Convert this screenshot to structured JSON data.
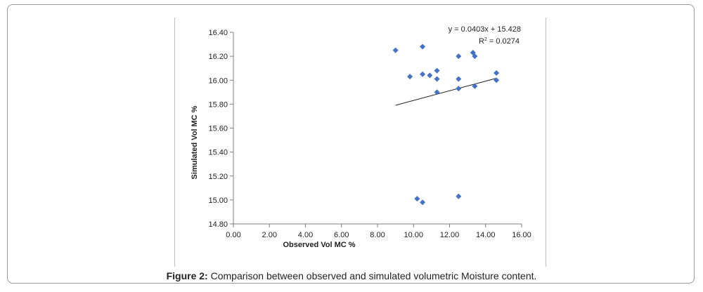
{
  "chart_data": {
    "type": "scatter",
    "xlabel": "Observed Vol MC %",
    "ylabel": "Simulated Vol MC %",
    "xlim": [
      0,
      16
    ],
    "ylim": [
      14.8,
      16.4
    ],
    "x_ticks": [
      "0.00",
      "2.00",
      "4.00",
      "6.00",
      "8.00",
      "10.00",
      "12.00",
      "14.00",
      "16.00"
    ],
    "y_ticks": [
      "14.80",
      "15.00",
      "15.20",
      "15.40",
      "15.60",
      "15.80",
      "16.00",
      "16.20",
      "16.40"
    ],
    "marker_color": "#4472c4",
    "points": [
      {
        "x": 9.0,
        "y": 16.25
      },
      {
        "x": 10.5,
        "y": 16.28
      },
      {
        "x": 9.8,
        "y": 16.03
      },
      {
        "x": 10.5,
        "y": 16.05
      },
      {
        "x": 10.9,
        "y": 16.04
      },
      {
        "x": 11.3,
        "y": 16.08
      },
      {
        "x": 11.3,
        "y": 16.01
      },
      {
        "x": 11.3,
        "y": 15.9
      },
      {
        "x": 12.5,
        "y": 16.2
      },
      {
        "x": 12.5,
        "y": 16.01
      },
      {
        "x": 12.5,
        "y": 15.93
      },
      {
        "x": 13.3,
        "y": 16.23
      },
      {
        "x": 13.4,
        "y": 16.2
      },
      {
        "x": 13.4,
        "y": 15.95
      },
      {
        "x": 14.6,
        "y": 16.06
      },
      {
        "x": 14.6,
        "y": 16.0
      },
      {
        "x": 10.2,
        "y": 15.01
      },
      {
        "x": 10.5,
        "y": 14.98
      },
      {
        "x": 12.5,
        "y": 15.03
      }
    ],
    "trendline": {
      "slope": 0.0403,
      "intercept": 15.428,
      "x_range": [
        9.0,
        14.6
      ],
      "equation": "y = 0.0403x + 15.428",
      "r2_prefix": "R",
      "r2_sup": "2",
      "r2_value": " = 0.0274"
    }
  },
  "caption": {
    "label": "Figure 2:",
    "text": " Comparison between observed and simulated volumetric Moisture content."
  }
}
